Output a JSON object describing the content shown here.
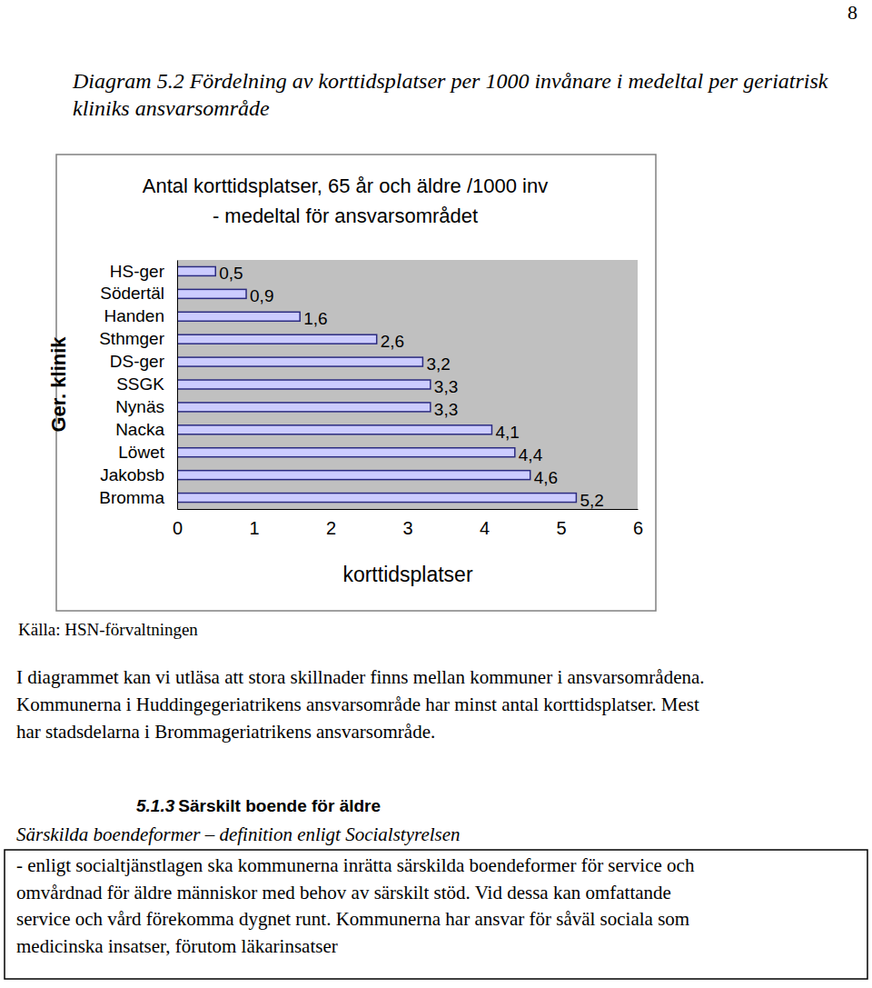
{
  "page_number": 8,
  "caption": [
    "Diagram 5.2 Fördelning av korttidsplatser per 1000 invånare i medeltal per geriatrisk",
    "kliniks ansvarsområde"
  ],
  "chart_data": {
    "type": "bar",
    "orientation": "horizontal",
    "title": "Antal korttidsplatser, 65 år och äldre /1000 inv",
    "subtitle": "- medeltal för ansvarsområdet",
    "y_label": "Ger. klinik",
    "x_label": "korttidsplatser",
    "categories": [
      "HS-ger",
      "Södertäl",
      "Handen",
      "Sthmger",
      "DS-ger",
      "SSGK",
      "Nynäs",
      "Nacka",
      "Löwet",
      "Jakobsb",
      "Bromma"
    ],
    "values": [
      0.5,
      0.9,
      1.6,
      2.6,
      3.2,
      3.3,
      3.3,
      4.1,
      4.4,
      4.6,
      5.2
    ],
    "value_labels": [
      "0,5",
      "0,9",
      "1,6",
      "2,6",
      "3,2",
      "3,3",
      "3,3",
      "4,1",
      "4,4",
      "4,6",
      "5,2"
    ],
    "color": "#ccccff",
    "xlim": [
      0,
      6
    ],
    "xticks": [
      0,
      1,
      2,
      3,
      4,
      5,
      6
    ],
    "grid": false,
    "data_labels": true
  },
  "source": "Källa: HSN-förvaltningen",
  "paragraph": [
    "I diagrammet kan vi utläsa att stora skillnader finns mellan kommuner i ansvarsområdena.",
    "Kommunerna i Huddingegeriatrikens ansvarsområde har minst antal korttidsplatser. Mest",
    "har stadsdelarna i Brommageriatrikens ansvarsområde."
  ],
  "section": {
    "number": "5.1.3",
    "title": "Särskilt boende för äldre"
  },
  "definition": {
    "heading": "Särskilda boendeformer – definition enligt Socialstyrelsen",
    "lines": [
      "- enligt socialtjänstlagen ska kommunerna inrätta särskilda boendeformer för service och",
      "omvårdnad för äldre människor med behov av särskilt stöd. Vid dessa kan omfattande",
      "service och vård förekomma dygnet runt. Kommunerna har ansvar för såväl sociala som",
      "medicinska insatser, förutom läkarinsatser"
    ]
  }
}
